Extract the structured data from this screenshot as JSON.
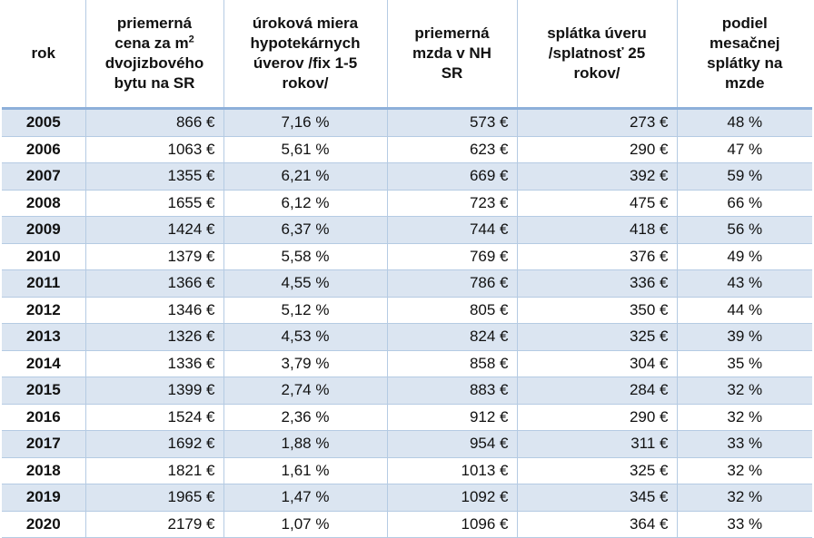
{
  "headers": {
    "rok": "rok",
    "cena_l1": "priemerná",
    "cena_l2": "cena za m",
    "cena_sup": "2",
    "cena_l3": "dvojizbového",
    "cena_l4": "bytu na SR",
    "urok_l1": "úroková miera",
    "urok_l2": "hypotekárnych",
    "urok_l3": "úverov /fix 1-5",
    "urok_l4": "rokov/",
    "mzda_l1": "priemerná",
    "mzda_l2": "mzda v NH",
    "mzda_l3": "SR",
    "splatka_l1": "splátka úveru",
    "splatka_l2": "/splatnosť 25",
    "splatka_l3": "rokov/",
    "podiel_l1": "podiel",
    "podiel_l2": "mesačnej",
    "podiel_l3": "splátky na",
    "podiel_l4": "mzde"
  },
  "rows": [
    {
      "rok": "2005",
      "cena": "866 €",
      "urok": "7,16 %",
      "mzda": "573 €",
      "splatka": "273 €",
      "podiel": "48 %"
    },
    {
      "rok": "2006",
      "cena": "1063 €",
      "urok": "5,61 %",
      "mzda": "623 €",
      "splatka": "290 €",
      "podiel": "47 %"
    },
    {
      "rok": "2007",
      "cena": "1355 €",
      "urok": "6,21 %",
      "mzda": "669 €",
      "splatka": "392 €",
      "podiel": "59 %"
    },
    {
      "rok": "2008",
      "cena": "1655 €",
      "urok": "6,12 %",
      "mzda": "723 €",
      "splatka": "475 €",
      "podiel": "66 %"
    },
    {
      "rok": "2009",
      "cena": "1424 €",
      "urok": "6,37 %",
      "mzda": "744 €",
      "splatka": "418 €",
      "podiel": "56 %"
    },
    {
      "rok": "2010",
      "cena": "1379 €",
      "urok": "5,58 %",
      "mzda": "769 €",
      "splatka": "376 €",
      "podiel": "49 %"
    },
    {
      "rok": "2011",
      "cena": "1366 €",
      "urok": "4,55 %",
      "mzda": "786 €",
      "splatka": "336 €",
      "podiel": "43 %"
    },
    {
      "rok": "2012",
      "cena": "1346 €",
      "urok": "5,12 %",
      "mzda": "805 €",
      "splatka": "350 €",
      "podiel": "44 %"
    },
    {
      "rok": "2013",
      "cena": "1326 €",
      "urok": "4,53 %",
      "mzda": "824 €",
      "splatka": "325 €",
      "podiel": "39 %"
    },
    {
      "rok": "2014",
      "cena": "1336 €",
      "urok": "3,79 %",
      "mzda": "858 €",
      "splatka": "304 €",
      "podiel": "35 %"
    },
    {
      "rok": "2015",
      "cena": "1399 €",
      "urok": "2,74 %",
      "mzda": "883 €",
      "splatka": "284 €",
      "podiel": "32 %"
    },
    {
      "rok": "2016",
      "cena": "1524 €",
      "urok": "2,36 %",
      "mzda": "912 €",
      "splatka": "290 €",
      "podiel": "32 %"
    },
    {
      "rok": "2017",
      "cena": "1692 €",
      "urok": "1,88 %",
      "mzda": "954 €",
      "splatka": "311 €",
      "podiel": "33 %"
    },
    {
      "rok": "2018",
      "cena": "1821 €",
      "urok": "1,61 %",
      "mzda": "1013 €",
      "splatka": "325 €",
      "podiel": "32 %"
    },
    {
      "rok": "2019",
      "cena": "1965 €",
      "urok": "1,47 %",
      "mzda": "1092 €",
      "splatka": "345 €",
      "podiel": "32 %"
    },
    {
      "rok": "2020",
      "cena": "2179 €",
      "urok": "1,07 %",
      "mzda": "1096 €",
      "splatka": "364 €",
      "podiel": "33 %"
    }
  ],
  "colors": {
    "band": "#dbe5f1",
    "grid": "#b5cbe3",
    "header_rule": "#8db0da"
  }
}
